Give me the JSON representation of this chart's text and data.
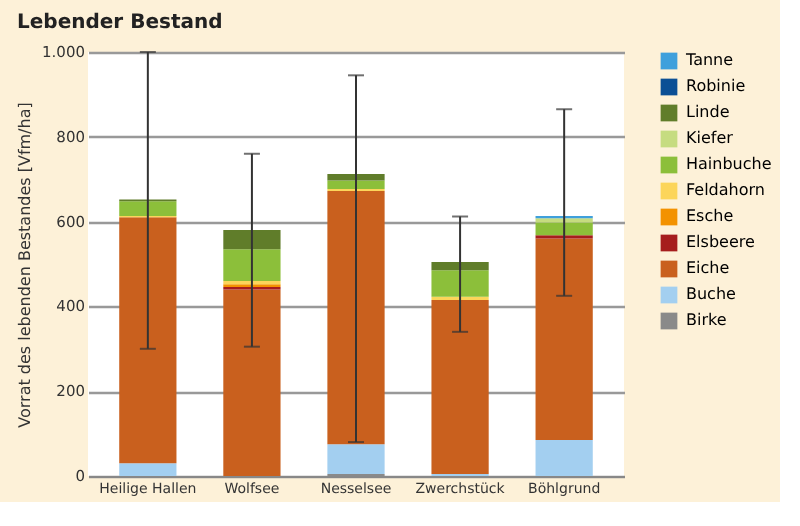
{
  "chart_data": {
    "type": "bar",
    "stacked": true,
    "title": "Lebender Bestand",
    "ylabel": "Vorrat des lebenden Bestandes [Vfm/ha]",
    "categories": [
      "Heilige Hallen",
      "Wolfsee",
      "Nesselsee",
      "Zwerchstück",
      "Böhlgrund"
    ],
    "ylim": [
      0,
      1000
    ],
    "yticks": [
      0,
      200,
      400,
      600,
      800,
      {
        "value": 1000,
        "label": "1.000"
      }
    ],
    "grid": "y",
    "legend": "right",
    "series": [
      {
        "name": "Birke",
        "color": "#8a8a8a",
        "values": [
          0,
          0,
          5,
          0,
          0
        ]
      },
      {
        "name": "Buche",
        "color": "#a3cff0",
        "values": [
          30,
          0,
          70,
          5,
          85
        ]
      },
      {
        "name": "Eiche",
        "color": "#c9601e",
        "values": [
          580,
          440,
          597,
          410,
          475
        ]
      },
      {
        "name": "Elsbeere",
        "color": "#a61d1d",
        "values": [
          0,
          6,
          0,
          0,
          8
        ]
      },
      {
        "name": "Esche",
        "color": "#f39200",
        "values": [
          0,
          6,
          0,
          0,
          0
        ]
      },
      {
        "name": "Feldahorn",
        "color": "#fcd55a",
        "values": [
          3,
          8,
          5,
          8,
          0
        ]
      },
      {
        "name": "Hainbuche",
        "color": "#8cbf3a",
        "values": [
          35,
          75,
          20,
          62,
          30
        ]
      },
      {
        "name": "Kiefer",
        "color": "#c6dc80",
        "values": [
          0,
          0,
          0,
          0,
          10
        ]
      },
      {
        "name": "Linde",
        "color": "#607d2a",
        "values": [
          4,
          45,
          15,
          20,
          0
        ]
      },
      {
        "name": "Robinie",
        "color": "#0b4f95",
        "values": [
          0,
          0,
          0,
          0,
          0
        ]
      },
      {
        "name": "Tanne",
        "color": "#3fa0dc",
        "values": [
          0,
          0,
          0,
          0,
          5
        ],
        "errors": [
          [
            300,
            1000
          ],
          [
            305,
            760
          ],
          [
            80,
            945
          ],
          [
            340,
            612
          ],
          [
            425,
            865
          ]
        ]
      }
    ]
  }
}
